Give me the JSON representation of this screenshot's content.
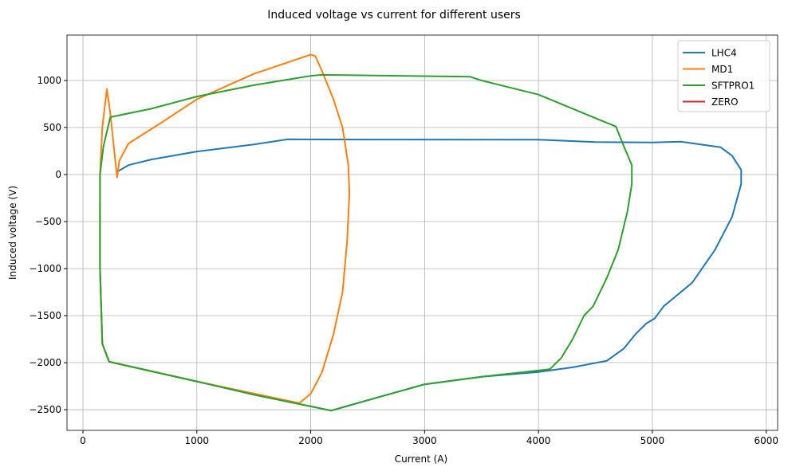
{
  "chart_data": {
    "type": "line",
    "title": "Induced voltage vs current for different users",
    "xlabel": "Current (A)",
    "ylabel": "Induced voltage (V)",
    "xlim": [
      -140,
      6100
    ],
    "ylim": [
      -2720,
      1483
    ],
    "xticks": [
      0,
      1000,
      2000,
      3000,
      4000,
      5000,
      6000
    ],
    "yticks": [
      -2500,
      -2000,
      -1500,
      -1000,
      -500,
      0,
      500,
      1000
    ],
    "grid": true,
    "legend_position": "top-right",
    "series": [
      {
        "name": "LHC4",
        "color": "#1f77b4",
        "points": [
          [
            300,
            30
          ],
          [
            400,
            100
          ],
          [
            600,
            160
          ],
          [
            1000,
            245
          ],
          [
            1500,
            320
          ],
          [
            1800,
            375
          ],
          [
            2500,
            372
          ],
          [
            4000,
            370
          ],
          [
            4500,
            345
          ],
          [
            5000,
            342
          ],
          [
            5250,
            350
          ],
          [
            5600,
            290
          ],
          [
            5700,
            200
          ],
          [
            5780,
            50
          ],
          [
            5780,
            -100
          ],
          [
            5700,
            -450
          ],
          [
            5550,
            -800
          ],
          [
            5350,
            -1150
          ],
          [
            5100,
            -1400
          ],
          [
            5020,
            -1530
          ],
          [
            4950,
            -1580
          ],
          [
            4850,
            -1700
          ],
          [
            4750,
            -1850
          ],
          [
            4600,
            -1980
          ],
          [
            4300,
            -2050
          ],
          [
            4000,
            -2100
          ],
          [
            3500,
            -2150
          ],
          [
            3000,
            -2230
          ],
          [
            2500,
            -2400
          ],
          [
            2180,
            -2510
          ],
          [
            1500,
            -2340
          ],
          [
            1000,
            -2200
          ],
          [
            230,
            -1990
          ],
          [
            170,
            -1800
          ],
          [
            150,
            -1000
          ],
          [
            150,
            -300
          ]
        ]
      },
      {
        "name": "MD1",
        "color": "#ff7f0e",
        "points": [
          [
            150,
            0
          ],
          [
            170,
            500
          ],
          [
            210,
            910
          ],
          [
            240,
            650
          ],
          [
            300,
            -30
          ],
          [
            320,
            150
          ],
          [
            400,
            330
          ],
          [
            700,
            560
          ],
          [
            1000,
            800
          ],
          [
            1500,
            1070
          ],
          [
            2000,
            1275
          ],
          [
            2040,
            1260
          ],
          [
            2100,
            1100
          ],
          [
            2200,
            800
          ],
          [
            2280,
            500
          ],
          [
            2330,
            100
          ],
          [
            2340,
            -200
          ],
          [
            2320,
            -700
          ],
          [
            2280,
            -1250
          ],
          [
            2200,
            -1700
          ],
          [
            2100,
            -2100
          ],
          [
            2000,
            -2330
          ],
          [
            1900,
            -2430
          ],
          [
            1000,
            -2200
          ],
          [
            230,
            -1990
          ],
          [
            170,
            -1800
          ],
          [
            150,
            -1000
          ],
          [
            150,
            0
          ]
        ]
      },
      {
        "name": "SFTPRO1",
        "color": "#2ca02c",
        "points": [
          [
            150,
            0
          ],
          [
            180,
            300
          ],
          [
            240,
            610
          ],
          [
            600,
            700
          ],
          [
            1000,
            830
          ],
          [
            1500,
            950
          ],
          [
            2000,
            1050
          ],
          [
            2100,
            1060
          ],
          [
            3400,
            1040
          ],
          [
            3500,
            1000
          ],
          [
            4000,
            850
          ],
          [
            4300,
            700
          ],
          [
            4680,
            510
          ],
          [
            4750,
            300
          ],
          [
            4820,
            100
          ],
          [
            4820,
            -100
          ],
          [
            4780,
            -400
          ],
          [
            4700,
            -800
          ],
          [
            4600,
            -1100
          ],
          [
            4480,
            -1400
          ],
          [
            4400,
            -1500
          ],
          [
            4300,
            -1750
          ],
          [
            4200,
            -1950
          ],
          [
            4100,
            -2070
          ],
          [
            3800,
            -2110
          ],
          [
            3500,
            -2150
          ],
          [
            3000,
            -2230
          ],
          [
            2500,
            -2400
          ],
          [
            2180,
            -2510
          ],
          [
            1500,
            -2340
          ],
          [
            1000,
            -2200
          ],
          [
            230,
            -1990
          ],
          [
            170,
            -1800
          ],
          [
            150,
            -1000
          ],
          [
            150,
            0
          ]
        ]
      },
      {
        "name": "ZERO",
        "color": "#d62728",
        "points": [
          [
            150,
            0
          ],
          [
            152,
            0
          ]
        ]
      }
    ]
  }
}
